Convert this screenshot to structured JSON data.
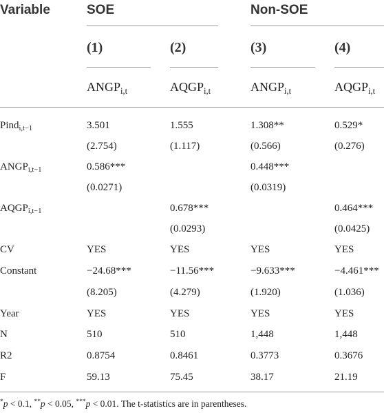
{
  "header": {
    "variable_label": "Variable",
    "groups": [
      {
        "label": "SOE"
      },
      {
        "label": "Non-SOE"
      }
    ],
    "column_numbers": [
      "(1)",
      "(2)",
      "(3)",
      "(4)"
    ],
    "var_names": [
      {
        "base": "ANGP",
        "sub": "i,t"
      },
      {
        "base": "AQGP",
        "sub": "i,t"
      },
      {
        "base": "ANGP",
        "sub": "i,t"
      },
      {
        "base": "AQGP",
        "sub": "i,t"
      }
    ]
  },
  "rows": [
    {
      "label": {
        "base": "Pind",
        "sub": "i,t−1"
      },
      "coef": [
        "3.501",
        "1.555",
        "1.308**",
        "0.529*"
      ],
      "se": [
        "(2.754)",
        "(1.117)",
        "(0.566)",
        "(0.276)"
      ]
    },
    {
      "label": {
        "base": "ANGP",
        "sub": "i,t−1"
      },
      "coef": [
        "0.586***",
        "",
        "0.448***",
        ""
      ],
      "se": [
        "(0.0271)",
        "",
        "(0.0319)",
        ""
      ]
    },
    {
      "label": {
        "base": "AQGP",
        "sub": "i,t−1"
      },
      "coef": [
        "",
        "0.678***",
        "",
        "0.464***"
      ],
      "se": [
        "",
        "(0.0293)",
        "",
        "(0.0425)"
      ]
    },
    {
      "label": {
        "base": "CV",
        "sub": ""
      },
      "coef": [
        "YES",
        "YES",
        "YES",
        "YES"
      ],
      "se": [
        "",
        "",
        "",
        ""
      ]
    },
    {
      "label": {
        "base": "Constant",
        "sub": ""
      },
      "coef": [
        "−24.68***",
        "−11.56***",
        "−9.633***",
        "−4.461***"
      ],
      "se": [
        "(8.205)",
        "(4.279)",
        "(1.920)",
        "(1.036)"
      ]
    },
    {
      "label": {
        "base": "Year",
        "sub": ""
      },
      "coef": [
        "YES",
        "YES",
        "YES",
        "YES"
      ],
      "se": [
        "",
        "",
        "",
        ""
      ]
    },
    {
      "label": {
        "base": "N",
        "sub": ""
      },
      "coef": [
        "510",
        "510",
        "1,448",
        "1,448"
      ],
      "se": [
        "",
        "",
        "",
        ""
      ]
    },
    {
      "label": {
        "base": "R2",
        "sub": ""
      },
      "coef": [
        "0.8754",
        "0.8461",
        "0.3773",
        "0.3676"
      ],
      "se": [
        "",
        "",
        "",
        ""
      ]
    },
    {
      "label": {
        "base": "F",
        "sub": ""
      },
      "coef": [
        "59.13",
        "75.45",
        "38.17",
        "21.19"
      ],
      "se": [
        "",
        "",
        "",
        ""
      ]
    }
  ],
  "footnote": {
    "parts": [
      {
        "sup": "*",
        "p": "p",
        "text": " < 0.1, "
      },
      {
        "sup": "**",
        "p": "p",
        "text": " < 0.05, "
      },
      {
        "sup": "***",
        "p": "p",
        "text": " < 0.01. The t-statistics are in parentheses."
      }
    ]
  }
}
